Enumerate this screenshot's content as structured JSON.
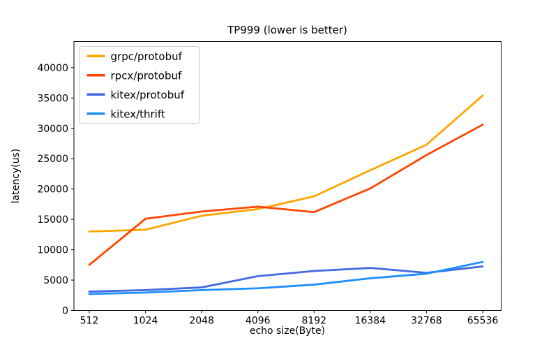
{
  "chart_data": {
    "type": "line",
    "title": "TP999 (lower is better)",
    "xlabel": "echo size(Byte)",
    "ylabel": "latency(us)",
    "categories": [
      "512",
      "1024",
      "2048",
      "4096",
      "8192",
      "16384",
      "32768",
      "65536"
    ],
    "yticks": [
      0,
      5000,
      10000,
      15000,
      20000,
      25000,
      30000,
      35000,
      40000
    ],
    "ylim": [
      0,
      44300
    ],
    "grid": false,
    "legend_position": "upper left",
    "series": [
      {
        "name": "grpc/protobuf",
        "color": "#FFA500",
        "values": [
          13000,
          13300,
          15600,
          16700,
          18800,
          23100,
          27300,
          35400
        ]
      },
      {
        "name": "rpcx/protobuf",
        "color": "#FF4500",
        "values": [
          7500,
          15100,
          16300,
          17100,
          16200,
          20100,
          25600,
          30600
        ]
      },
      {
        "name": "kitex/protobuf",
        "color": "#4169E1",
        "values": [
          3100,
          3350,
          3800,
          5650,
          6500,
          7000,
          6200,
          7250
        ]
      },
      {
        "name": "kitex/thrift",
        "color": "#1E90FF",
        "values": [
          2700,
          2950,
          3350,
          3650,
          4250,
          5300,
          6050,
          8000
        ]
      }
    ]
  }
}
